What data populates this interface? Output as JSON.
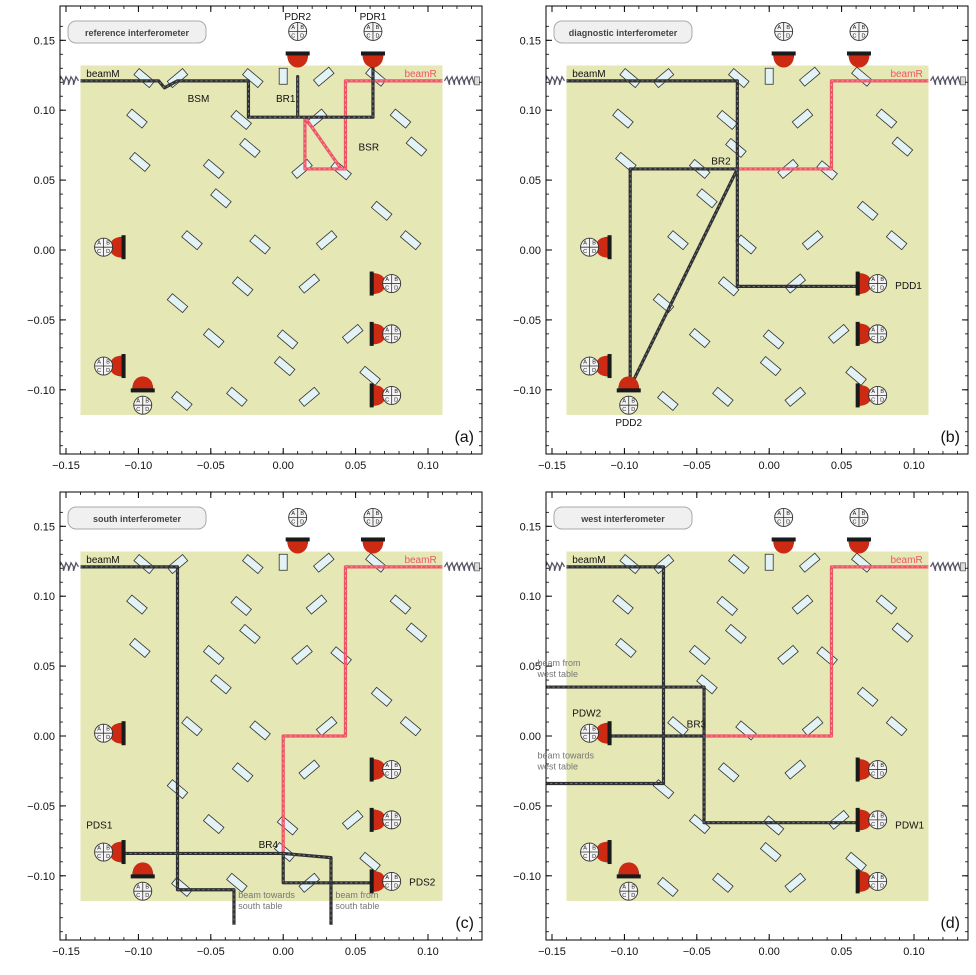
{
  "panels": [
    {
      "letter": "(a)",
      "title": "reference interferometer",
      "labels": {
        "beamM": "beamM",
        "beamR": "beamR",
        "BSM": "BSM",
        "BR1": "BR1",
        "BSR": "BSR",
        "PDR1": "PDR1",
        "PDR2": "PDR2"
      },
      "x_ticks": [
        "−0.15",
        "−0.10",
        "−0.05",
        "0.00",
        "0.05",
        "0.10"
      ],
      "y_ticks": [
        "0.15",
        "0.10",
        "0.05",
        "0.00",
        "−0.05",
        "−0.10"
      ]
    },
    {
      "letter": "(b)",
      "title": "diagnostic interferometer",
      "labels": {
        "beamM": "beamM",
        "beamR": "beamR",
        "BR2": "BR2",
        "PDD1": "PDD1",
        "PDD2": "PDD2"
      },
      "x_ticks": [
        "−0.15",
        "−0.10",
        "−0.05",
        "0.00",
        "0.05",
        "0.10"
      ],
      "y_ticks": [
        "0.15",
        "0.10",
        "0.05",
        "0.00",
        "−0.05",
        "−0.10"
      ]
    },
    {
      "letter": "(c)",
      "title": "south interferometer",
      "labels": {
        "beamM": "beamM",
        "beamR": "beamR",
        "BR4": "BR4",
        "PDS1": "PDS1",
        "PDS2": "PDS2",
        "note_towards": "beam towards south table",
        "note_from": "beam from south table"
      },
      "x_ticks": [
        "−0.15",
        "−0.10",
        "−0.05",
        "0.00",
        "0.05",
        "0.10"
      ],
      "y_ticks": [
        "0.15",
        "0.10",
        "0.05",
        "0.00",
        "−0.05",
        "−0.10"
      ]
    },
    {
      "letter": "(d)",
      "title": "west interferometer",
      "labels": {
        "beamM": "beamM",
        "beamR": "beamR",
        "BR3": "BR3",
        "PDW1": "PDW1",
        "PDW2": "PDW2",
        "note_from": "beam from west table",
        "note_towards": "beam towards west table"
      },
      "x_ticks": [
        "−0.15",
        "−0.10",
        "−0.05",
        "0.00",
        "0.05",
        "0.10"
      ],
      "y_ticks": [
        "0.15",
        "0.10",
        "0.05",
        "0.00",
        "−0.05",
        "−0.10"
      ]
    }
  ],
  "colors": {
    "bench": "#e5e7b4",
    "beam_measurement": "#303133",
    "beam_reference": "#ee5566",
    "mirror_fill": "#e3f3f5",
    "photodiode_orange": "#e8891e",
    "photodiode_red": "#cc2a12"
  },
  "icons": [
    "spring-mount-icon",
    "photodiode-icon",
    "quadrant-detector-icon",
    "mirror-icon"
  ]
}
